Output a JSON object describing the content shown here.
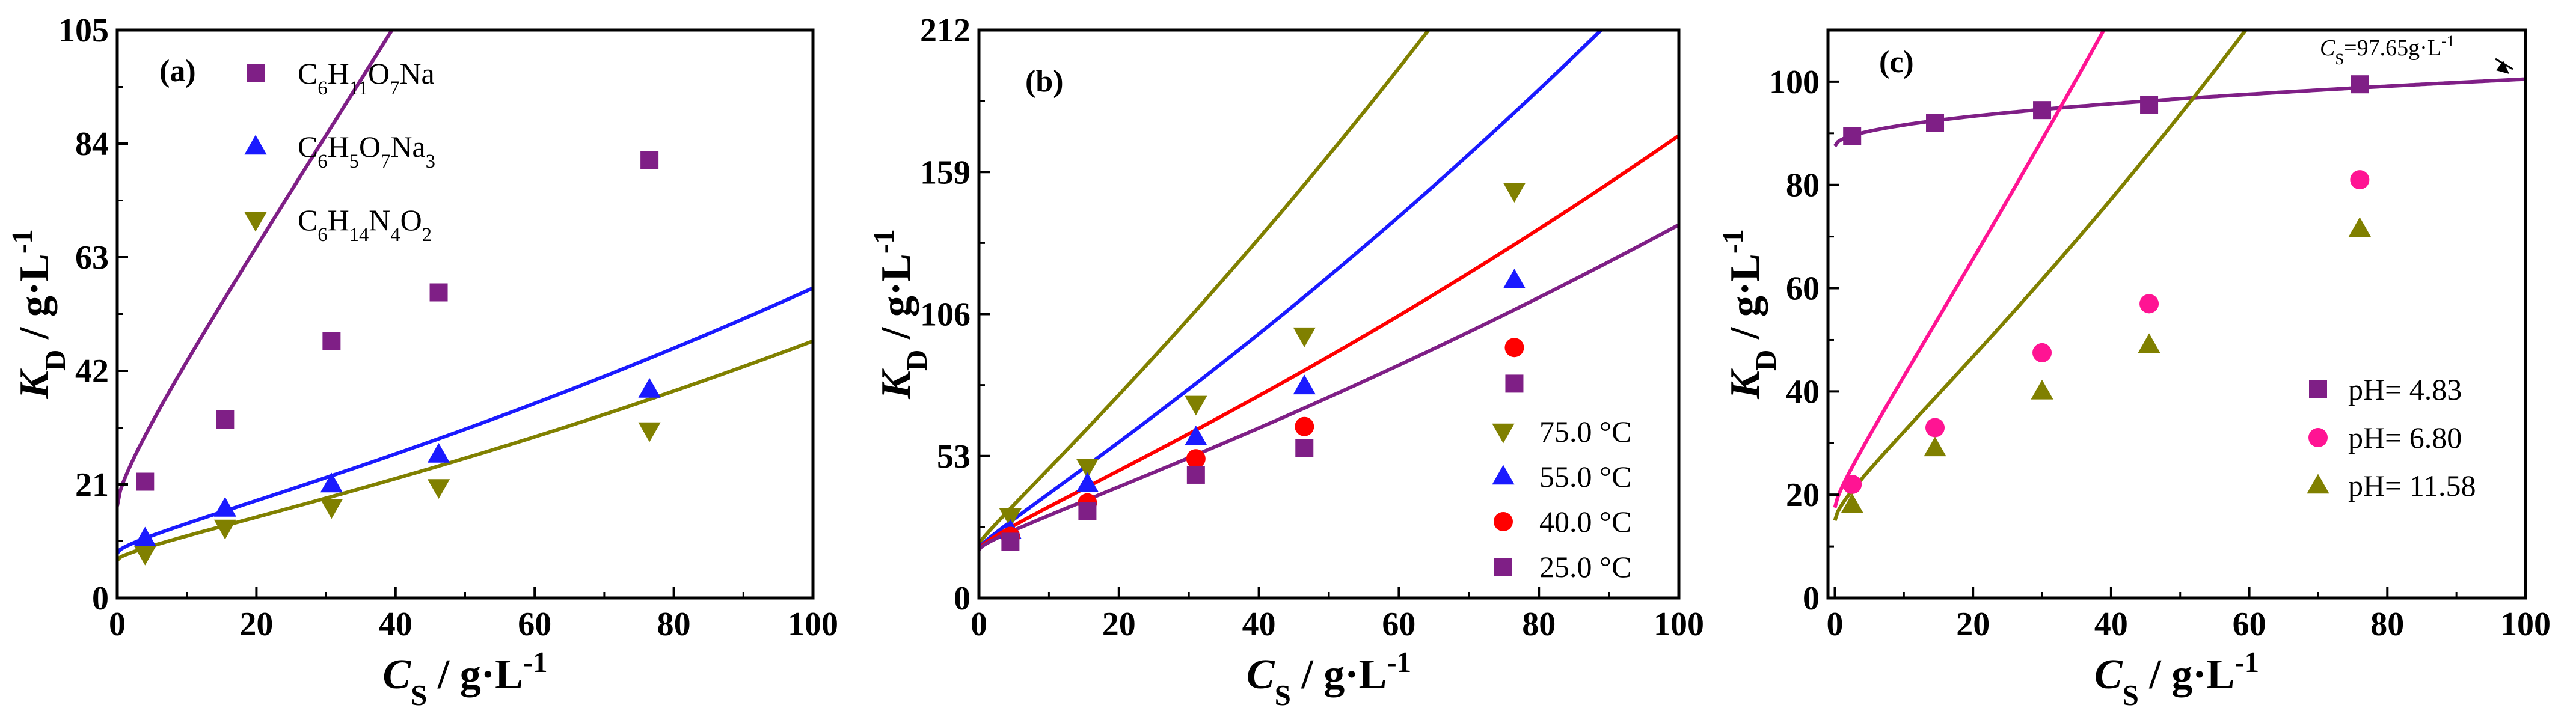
{
  "chart_data": [
    {
      "type": "scatter",
      "panel_label": "(a)",
      "xlabel": {
        "main": "C",
        "sub": "S",
        "unit": " / g·L",
        "sup": "-1"
      },
      "ylabel": {
        "main": "K",
        "sub": "D",
        "unit": " / g·L",
        "sup": "-1"
      },
      "xlim": [
        0,
        100
      ],
      "ylim": [
        0,
        105
      ],
      "xticks": [
        0,
        20,
        40,
        60,
        80,
        100
      ],
      "yticks": [
        0,
        21,
        42,
        63,
        84,
        105
      ],
      "xtick_labels": [
        "0",
        "20",
        "40",
        "60",
        "80",
        "100"
      ],
      "ytick_labels": [
        "0",
        "21",
        "42",
        "63",
        "84",
        "105"
      ],
      "legend_position": "top-left",
      "series": [
        {
          "name": "C6H11O7Na",
          "name_parts": [
            [
              "C",
              ""
            ],
            [
              "6",
              "sub"
            ],
            [
              "H",
              ""
            ],
            [
              "11",
              "sub"
            ],
            [
              "O",
              ""
            ],
            [
              "7",
              "sub"
            ],
            [
              "Na",
              ""
            ]
          ],
          "color": "#7f1f86",
          "marker": "square",
          "x": [
            4.0,
            15.5,
            30.8,
            46.2,
            76.5
          ],
          "y": [
            21.5,
            33.0,
            47.5,
            56.5,
            81.0
          ],
          "fit": {
            "a": 17.0,
            "b": 1.64,
            "c": 0.002,
            "d": 3.2
          }
        },
        {
          "name": "C6H5O7Na3",
          "name_parts": [
            [
              "C",
              ""
            ],
            [
              "6",
              "sub"
            ],
            [
              "H",
              ""
            ],
            [
              "5",
              "sub"
            ],
            [
              "O",
              ""
            ],
            [
              "7",
              "sub"
            ],
            [
              "Na",
              ""
            ],
            [
              "3",
              "sub"
            ]
          ],
          "color": "#1a1aff",
          "marker": "triangle-up",
          "x": [
            4.0,
            15.5,
            30.8,
            46.2,
            76.5
          ],
          "y": [
            11.0,
            16.5,
            21.0,
            26.5,
            38.5
          ],
          "fit": {
            "a": 8.3,
            "b": 0.28,
            "c": 0.0013,
            "d": 0.8
          }
        },
        {
          "name": "C6H14N4O2",
          "name_parts": [
            [
              "C",
              ""
            ],
            [
              "6",
              "sub"
            ],
            [
              "H",
              ""
            ],
            [
              "14",
              "sub"
            ],
            [
              "N",
              ""
            ],
            [
              "4",
              "sub"
            ],
            [
              "O",
              ""
            ],
            [
              "2",
              "sub"
            ]
          ],
          "color": "#808000",
          "marker": "triangle-down",
          "x": [
            4.0,
            15.5,
            30.8,
            46.2,
            76.5
          ],
          "y": [
            8.2,
            13.0,
            16.8,
            20.5,
            31.0
          ],
          "fit": {
            "a": 7.0,
            "b": 0.23,
            "c": 0.0011,
            "d": 0.65
          }
        }
      ]
    },
    {
      "type": "scatter",
      "panel_label": "(b)",
      "xlabel": {
        "main": "C",
        "sub": "S",
        "unit": " / g·L",
        "sup": "-1"
      },
      "ylabel": {
        "main": "K",
        "sub": "D",
        "unit": " / g·L",
        "sup": "-1"
      },
      "xlim": [
        0,
        100
      ],
      "ylim": [
        0,
        212
      ],
      "xticks": [
        0,
        20,
        40,
        60,
        80,
        100
      ],
      "yticks": [
        0,
        53,
        106,
        159,
        212
      ],
      "xtick_labels": [
        "0",
        "20",
        "40",
        "60",
        "80",
        "100"
      ],
      "ytick_labels": [
        "0",
        "53",
        "106",
        "159",
        "212"
      ],
      "legend_position": "bottom-right",
      "series": [
        {
          "name": "75.0 °C",
          "color": "#808000",
          "marker": "triangle-down",
          "x": [
            4.5,
            15.5,
            31.0,
            46.5,
            76.5
          ],
          "y": [
            30.5,
            49.0,
            72.5,
            98.0,
            152.0
          ],
          "fit": {
            "a": 20.0,
            "b": 2.38,
            "c": 0.00715,
            "d": 1.2
          }
        },
        {
          "name": "55.0 °C",
          "color": "#1a1aff",
          "marker": "triangle-up",
          "x": [
            4.5,
            15.5,
            31.0,
            46.5,
            76.5
          ],
          "y": [
            25.0,
            42.5,
            60.0,
            79.0,
            118.5
          ],
          "fit": {
            "a": 18.5,
            "b": 1.62,
            "c": 0.00483,
            "d": 1.2
          }
        },
        {
          "name": "40.0 °C",
          "color": "#ff0000",
          "marker": "circle",
          "x": [
            4.5,
            15.5,
            31.0,
            46.5,
            76.5
          ],
          "y": [
            23.0,
            35.5,
            52.0,
            64.0,
            93.5
          ],
          "fit": {
            "a": 18.0,
            "b": 1.03,
            "c": 0.00346,
            "d": 1.7
          }
        },
        {
          "name": "25.0 °C",
          "color": "#7f1f86",
          "marker": "square",
          "x": [
            4.5,
            15.5,
            31.0,
            46.5,
            76.5
          ],
          "y": [
            21.0,
            32.5,
            46.0,
            56.0,
            80.0
          ],
          "fit": {
            "a": 18.0,
            "b": 0.81,
            "c": 0.00263,
            "d": 1.4
          }
        }
      ]
    },
    {
      "type": "scatter",
      "panel_label": "(c)",
      "xlabel": {
        "main": "C",
        "sub": "S",
        "unit": " / g·L",
        "sup": "-1"
      },
      "ylabel": {
        "main": "K",
        "sub": "D",
        "unit": " / g·L",
        "sup": "-1"
      },
      "xlim": [
        -1,
        100
      ],
      "ylim": [
        0,
        110
      ],
      "xticks": [
        0,
        20,
        40,
        60,
        80,
        100
      ],
      "yticks": [
        0,
        20,
        40,
        60,
        80,
        100
      ],
      "xtick_labels": [
        "0",
        "20",
        "40",
        "60",
        "80",
        "100"
      ],
      "ytick_labels": [
        "0",
        "20",
        "40",
        "60",
        "80",
        "100"
      ],
      "legend_position": "bottom-right",
      "annotation": {
        "main": "C",
        "sub": "S",
        "rest": "=97.65g·L",
        "sup": "-1",
        "x": 97.65,
        "y": 101.5
      },
      "series": [
        {
          "name": "pH= 4.83",
          "color": "#7f1f86",
          "marker": "square",
          "x": [
            2.5,
            14.5,
            30.0,
            45.5,
            76.0
          ],
          "y": [
            89.5,
            92.0,
            94.5,
            95.5,
            99.5
          ],
          "fit": {
            "a": 87.5,
            "b": 1.3,
            "c": 0.0,
            "d": 0.0
          }
        },
        {
          "name": "pH= 6.80",
          "color": "#ff1493",
          "marker": "circle",
          "x": [
            2.5,
            14.5,
            30.0,
            45.5,
            76.0
          ],
          "y": [
            22.0,
            33.0,
            47.5,
            57.0,
            81.0
          ],
          "fit": {
            "a": 17.5,
            "b": 1.86,
            "c": 0.005,
            "d": 2.0
          }
        },
        {
          "name": "pH= 11.58",
          "color": "#808000",
          "marker": "triangle-up",
          "x": [
            2.5,
            14.5,
            30.0,
            45.5,
            76.0
          ],
          "y": [
            18.0,
            29.0,
            40.0,
            49.0,
            71.5
          ],
          "fit": {
            "a": 15.0,
            "b": 1.04,
            "c": 0.005,
            "d": 2.0
          }
        }
      ]
    }
  ]
}
